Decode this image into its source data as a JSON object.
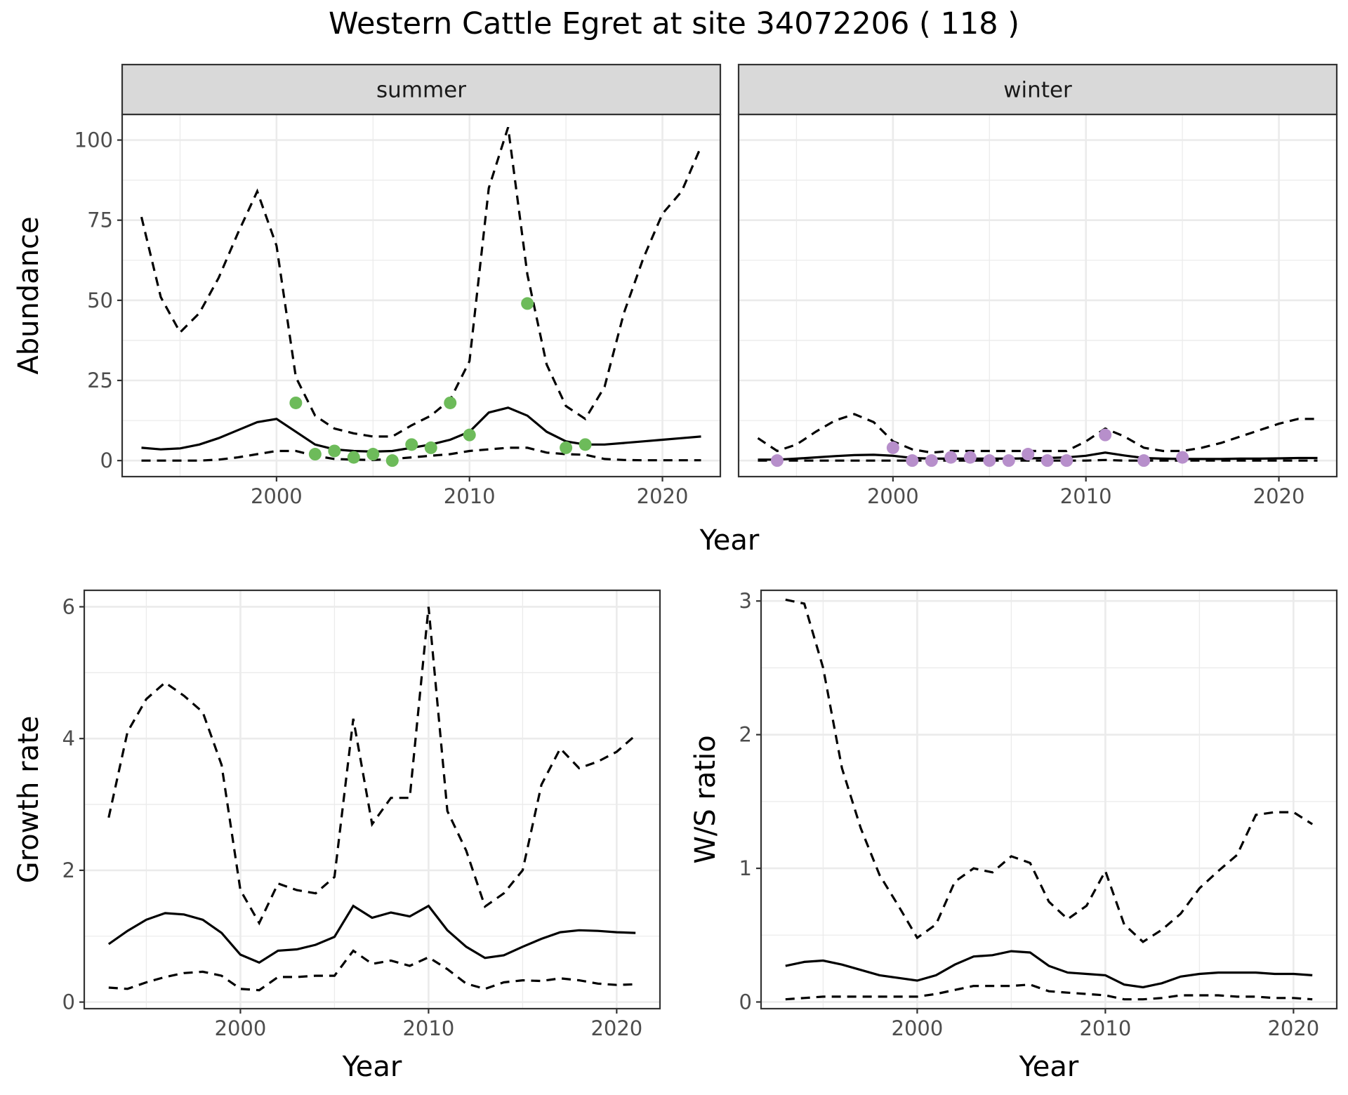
{
  "title": "Western Cattle Egret at site 34072206 ( 118 )",
  "colors": {
    "summer_points": "#6dbb5a",
    "winter_points": "#b78fcb",
    "lines": "#000000"
  },
  "chart_data": [
    {
      "type": "line",
      "facet": "summer",
      "xlabel": "Year",
      "ylabel": "Abundance",
      "xlim": [
        1992,
        2023
      ],
      "ylim": [
        -5,
        108
      ],
      "x_ticks": [
        2000,
        2010,
        2020
      ],
      "y_ticks": [
        0,
        25,
        50,
        75,
        100
      ],
      "series": [
        {
          "role": "upper",
          "style": "dashed",
          "x": [
            1993,
            1994,
            1995,
            1996,
            1997,
            1998,
            1999,
            2000,
            2001,
            2002,
            2003,
            2004,
            2005,
            2006,
            2007,
            2008,
            2009,
            2010,
            2011,
            2012,
            2013,
            2014,
            2015,
            2016,
            2017,
            2018,
            2019,
            2020,
            2021,
            2022
          ],
          "values": [
            76,
            51,
            40,
            46,
            57,
            71,
            84,
            67,
            26,
            14,
            10,
            8.5,
            7.5,
            7.5,
            11,
            14,
            19,
            31,
            85,
            104,
            58,
            30,
            17,
            13,
            23,
            46,
            63,
            77,
            84,
            98
          ]
        },
        {
          "role": "median",
          "style": "solid",
          "x": [
            1993,
            1994,
            1995,
            1996,
            1997,
            1998,
            1999,
            2000,
            2001,
            2002,
            2003,
            2004,
            2005,
            2006,
            2007,
            2008,
            2009,
            2010,
            2011,
            2012,
            2013,
            2014,
            2015,
            2016,
            2017,
            2018,
            2019,
            2020,
            2021,
            2022
          ],
          "values": [
            4,
            3.5,
            3.8,
            5,
            7,
            9.5,
            12,
            13,
            9,
            5,
            3.5,
            3,
            2.8,
            3,
            4,
            5,
            6.5,
            9,
            15,
            16.5,
            14,
            9,
            6,
            5,
            5,
            5.5,
            6,
            6.5,
            7,
            7.5
          ]
        },
        {
          "role": "lower",
          "style": "dashed",
          "x": [
            1993,
            1994,
            1995,
            1996,
            1997,
            1998,
            1999,
            2000,
            2001,
            2002,
            2003,
            2004,
            2005,
            2006,
            2007,
            2008,
            2009,
            2010,
            2011,
            2012,
            2013,
            2014,
            2015,
            2016,
            2017,
            2018,
            2019,
            2020,
            2021,
            2022
          ],
          "values": [
            0,
            0,
            0,
            0,
            0.3,
            1,
            2,
            3,
            3,
            1.5,
            0.5,
            0.3,
            0.2,
            0.5,
            1,
            1.5,
            2,
            3,
            3.5,
            4,
            4,
            2.5,
            2,
            1.8,
            0.5,
            0.2,
            0.1,
            0.1,
            0.1,
            0.1
          ]
        }
      ],
      "points": {
        "x": [
          2001,
          2002,
          2003,
          2004,
          2005,
          2006,
          2007,
          2008,
          2009,
          2010,
          2013,
          2015,
          2016
        ],
        "values": [
          18,
          2,
          3,
          1,
          2,
          0,
          5,
          4,
          18,
          8,
          49,
          4,
          5
        ]
      }
    },
    {
      "type": "line",
      "facet": "winter",
      "xlabel": "Year",
      "ylabel": "Abundance",
      "xlim": [
        1992,
        2023
      ],
      "ylim": [
        -5,
        108
      ],
      "x_ticks": [
        2000,
        2010,
        2020
      ],
      "y_ticks": [
        0,
        25,
        50,
        75,
        100
      ],
      "series": [
        {
          "role": "upper",
          "style": "dashed",
          "x": [
            1993,
            1994,
            1995,
            1996,
            1997,
            1998,
            1999,
            2000,
            2001,
            2002,
            2003,
            2004,
            2005,
            2006,
            2007,
            2008,
            2009,
            2010,
            2011,
            2012,
            2013,
            2014,
            2015,
            2016,
            2017,
            2018,
            2019,
            2020,
            2021,
            2022
          ],
          "values": [
            7,
            3,
            5,
            9,
            12.5,
            14.5,
            12,
            6,
            3.5,
            2.5,
            3,
            3,
            3,
            3,
            3,
            3,
            3,
            6,
            10,
            7.5,
            4,
            3,
            3,
            4,
            5.5,
            7.5,
            9.5,
            11.5,
            13,
            13
          ]
        },
        {
          "role": "median",
          "style": "solid",
          "x": [
            1993,
            1994,
            1995,
            1996,
            1997,
            1998,
            1999,
            2000,
            2001,
            2002,
            2003,
            2004,
            2005,
            2006,
            2007,
            2008,
            2009,
            2010,
            2011,
            2012,
            2013,
            2014,
            2015,
            2016,
            2017,
            2018,
            2019,
            2020,
            2021,
            2022
          ],
          "values": [
            0.3,
            0.3,
            0.6,
            1,
            1.4,
            1.7,
            1.8,
            1.5,
            0.8,
            0.6,
            0.6,
            0.6,
            0.6,
            0.6,
            0.7,
            0.8,
            1,
            1.5,
            2.5,
            1.6,
            0.8,
            0.6,
            0.5,
            0.5,
            0.5,
            0.6,
            0.6,
            0.7,
            0.8,
            0.8
          ]
        },
        {
          "role": "lower",
          "style": "dashed",
          "x": [
            1993,
            1994,
            1995,
            1996,
            1997,
            1998,
            1999,
            2000,
            2001,
            2002,
            2003,
            2004,
            2005,
            2006,
            2007,
            2008,
            2009,
            2010,
            2011,
            2012,
            2013,
            2014,
            2015,
            2016,
            2017,
            2018,
            2019,
            2020,
            2021,
            2022
          ],
          "values": [
            0,
            0,
            0,
            0,
            0,
            0,
            0,
            0,
            0,
            0,
            0,
            0,
            0,
            0,
            0,
            0,
            0,
            0,
            0.2,
            0,
            0,
            0,
            0,
            0,
            0,
            0,
            0,
            0,
            0,
            0
          ]
        }
      ],
      "points": {
        "x": [
          1994,
          2000,
          2001,
          2002,
          2003,
          2004,
          2005,
          2006,
          2007,
          2008,
          2009,
          2011,
          2013,
          2015
        ],
        "values": [
          0,
          4,
          0,
          0,
          1,
          1,
          0,
          0,
          2,
          0,
          0,
          8,
          0,
          1
        ]
      }
    },
    {
      "type": "line",
      "xlabel": "Year",
      "ylabel": "Growth rate",
      "xlim": [
        1991.7,
        2022.3
      ],
      "ylim": [
        -0.1,
        6.25
      ],
      "x_ticks": [
        2000,
        2010,
        2020
      ],
      "y_ticks": [
        0,
        2,
        4,
        6
      ],
      "series": [
        {
          "role": "upper",
          "style": "dashed",
          "x": [
            1993,
            1994,
            1995,
            1996,
            1997,
            1998,
            1999,
            2000,
            2001,
            2002,
            2003,
            2004,
            2005,
            2006,
            2007,
            2008,
            2009,
            2010,
            2011,
            2012,
            2013,
            2014,
            2015,
            2016,
            2017,
            2018,
            2019,
            2020,
            2021
          ],
          "values": [
            2.8,
            4.1,
            4.6,
            4.85,
            4.65,
            4.4,
            3.6,
            1.7,
            1.2,
            1.8,
            1.7,
            1.65,
            1.9,
            4.3,
            2.7,
            3.1,
            3.1,
            6.0,
            2.9,
            2.3,
            1.45,
            1.65,
            2.0,
            3.3,
            3.85,
            3.55,
            3.65,
            3.8,
            4.05
          ]
        },
        {
          "role": "median",
          "style": "solid",
          "x": [
            1993,
            1994,
            1995,
            1996,
            1997,
            1998,
            1999,
            2000,
            2001,
            2002,
            2003,
            2004,
            2005,
            2006,
            2007,
            2008,
            2009,
            2010,
            2011,
            2012,
            2013,
            2014,
            2015,
            2016,
            2017,
            2018,
            2019,
            2020,
            2021
          ],
          "values": [
            0.88,
            1.08,
            1.25,
            1.35,
            1.33,
            1.25,
            1.05,
            0.72,
            0.6,
            0.78,
            0.8,
            0.87,
            0.99,
            1.46,
            1.28,
            1.36,
            1.3,
            1.46,
            1.09,
            0.84,
            0.67,
            0.71,
            0.84,
            0.96,
            1.06,
            1.09,
            1.08,
            1.06,
            1.05
          ]
        },
        {
          "role": "lower",
          "style": "dashed",
          "x": [
            1993,
            1994,
            1995,
            1996,
            1997,
            1998,
            1999,
            2000,
            2001,
            2002,
            2003,
            2004,
            2005,
            2006,
            2007,
            2008,
            2009,
            2010,
            2011,
            2012,
            2013,
            2014,
            2015,
            2016,
            2017,
            2018,
            2019,
            2020,
            2021
          ],
          "values": [
            0.22,
            0.2,
            0.3,
            0.38,
            0.44,
            0.46,
            0.4,
            0.2,
            0.18,
            0.38,
            0.38,
            0.4,
            0.4,
            0.78,
            0.58,
            0.63,
            0.55,
            0.68,
            0.5,
            0.28,
            0.2,
            0.3,
            0.33,
            0.32,
            0.36,
            0.33,
            0.28,
            0.26,
            0.27
          ]
        }
      ]
    },
    {
      "type": "line",
      "xlabel": "Year",
      "ylabel": "W/S ratio",
      "xlim": [
        1991.7,
        2022.3
      ],
      "ylim": [
        -0.05,
        3.08
      ],
      "x_ticks": [
        2000,
        2010,
        2020
      ],
      "y_ticks": [
        0,
        1,
        2,
        3
      ],
      "series": [
        {
          "role": "upper",
          "style": "dashed",
          "x": [
            1993,
            1994,
            1995,
            1996,
            1997,
            1998,
            1999,
            2000,
            2001,
            2002,
            2003,
            2004,
            2005,
            2006,
            2007,
            2008,
            2009,
            2010,
            2011,
            2012,
            2013,
            2014,
            2015,
            2016,
            2017,
            2018,
            2019,
            2020,
            2021
          ],
          "values": [
            3.01,
            2.98,
            2.5,
            1.75,
            1.3,
            0.95,
            0.72,
            0.48,
            0.58,
            0.9,
            1.0,
            0.97,
            1.09,
            1.04,
            0.75,
            0.62,
            0.72,
            0.98,
            0.58,
            0.45,
            0.54,
            0.66,
            0.85,
            0.98,
            1.1,
            1.4,
            1.42,
            1.42,
            1.33
          ]
        },
        {
          "role": "median",
          "style": "solid",
          "x": [
            1993,
            1994,
            1995,
            1996,
            1997,
            1998,
            1999,
            2000,
            2001,
            2002,
            2003,
            2004,
            2005,
            2006,
            2007,
            2008,
            2009,
            2010,
            2011,
            2012,
            2013,
            2014,
            2015,
            2016,
            2017,
            2018,
            2019,
            2020,
            2021
          ],
          "values": [
            0.27,
            0.3,
            0.31,
            0.28,
            0.24,
            0.2,
            0.18,
            0.16,
            0.2,
            0.28,
            0.34,
            0.35,
            0.38,
            0.37,
            0.27,
            0.22,
            0.21,
            0.2,
            0.13,
            0.11,
            0.14,
            0.19,
            0.21,
            0.22,
            0.22,
            0.22,
            0.21,
            0.21,
            0.2
          ]
        },
        {
          "role": "lower",
          "style": "dashed",
          "x": [
            1993,
            1994,
            1995,
            1996,
            1997,
            1998,
            1999,
            2000,
            2001,
            2002,
            2003,
            2004,
            2005,
            2006,
            2007,
            2008,
            2009,
            2010,
            2011,
            2012,
            2013,
            2014,
            2015,
            2016,
            2017,
            2018,
            2019,
            2020,
            2021
          ],
          "values": [
            0.02,
            0.03,
            0.04,
            0.04,
            0.04,
            0.04,
            0.04,
            0.04,
            0.06,
            0.09,
            0.12,
            0.12,
            0.12,
            0.13,
            0.08,
            0.07,
            0.06,
            0.05,
            0.02,
            0.02,
            0.03,
            0.05,
            0.05,
            0.05,
            0.04,
            0.04,
            0.03,
            0.03,
            0.02
          ]
        }
      ]
    }
  ]
}
